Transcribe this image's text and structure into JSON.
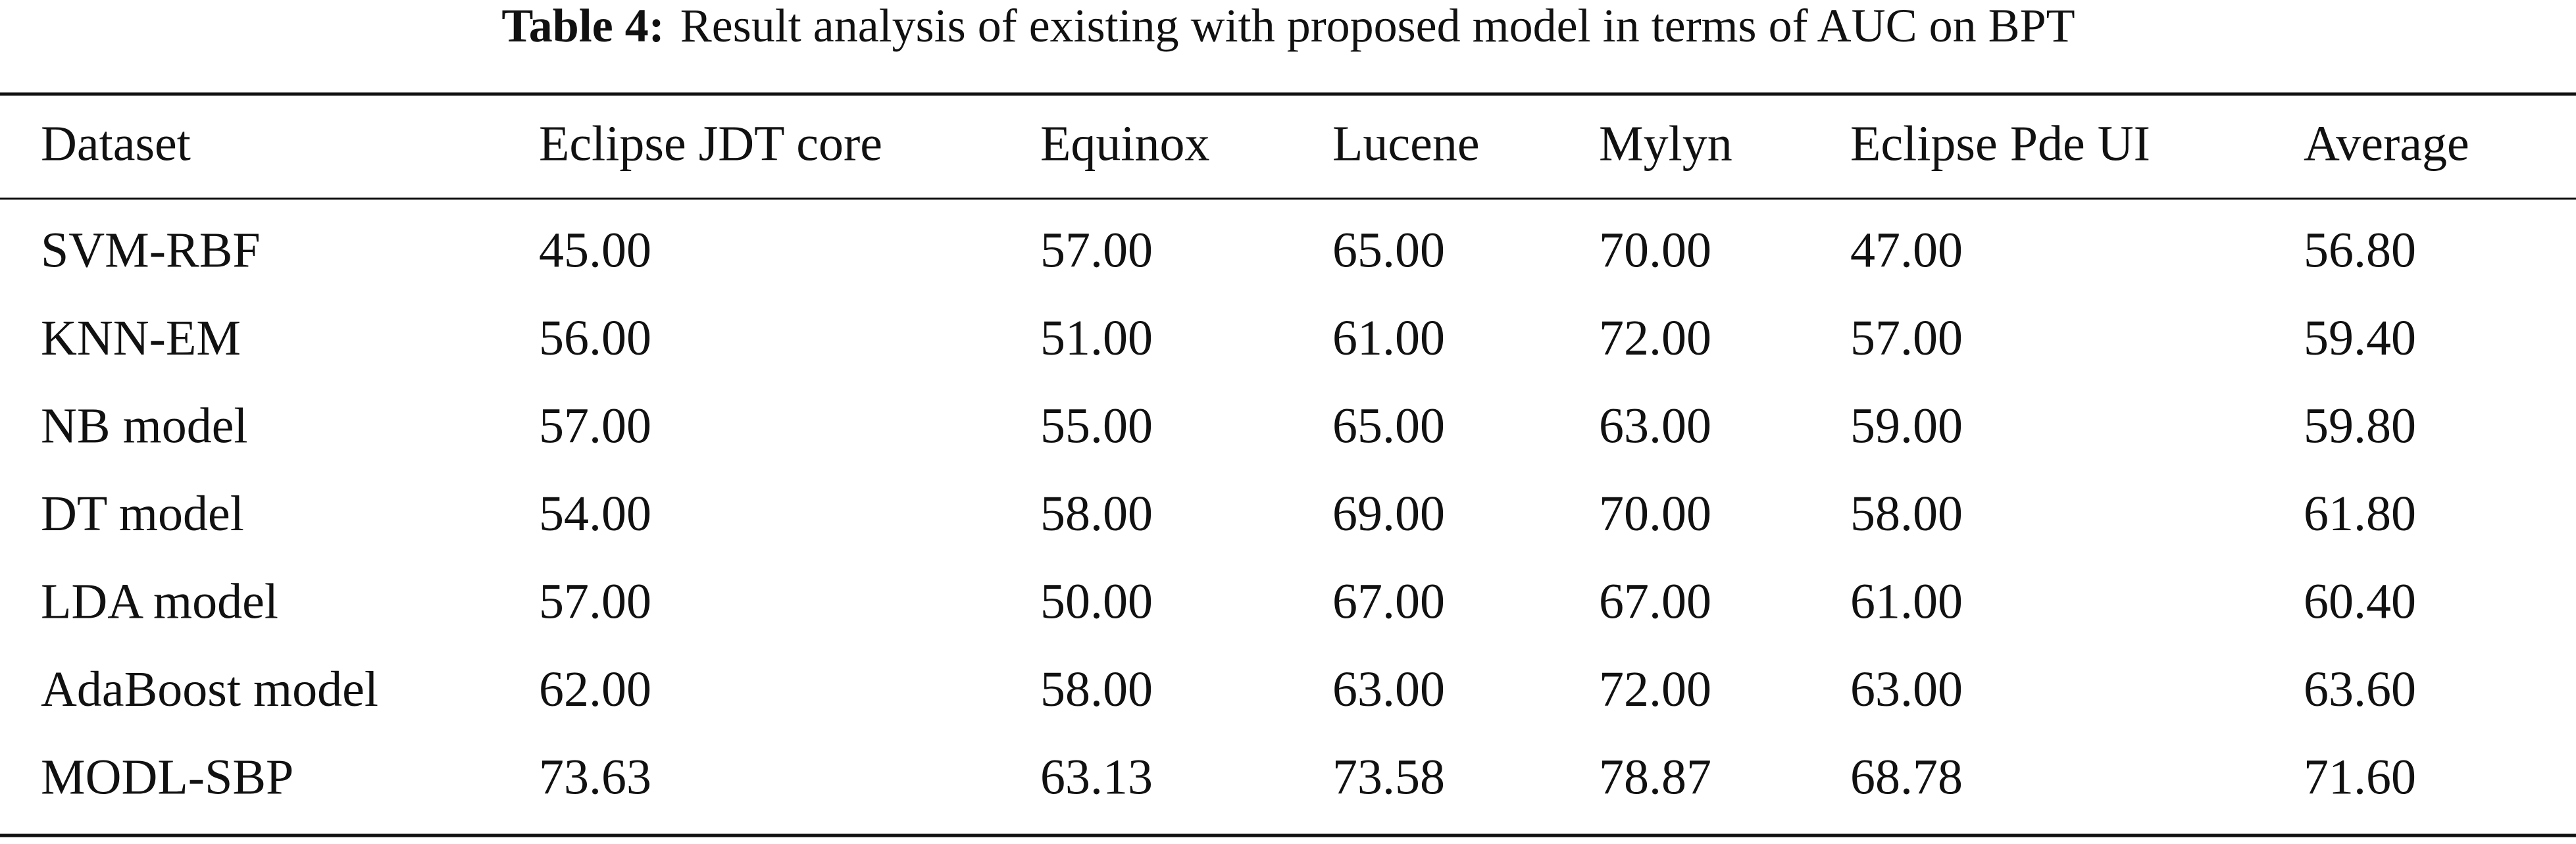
{
  "caption": {
    "label": "Table 4:",
    "text": "Result analysis of existing with proposed model in terms of AUC on BPT"
  },
  "table": {
    "header": [
      "Dataset",
      "Eclipse JDT core",
      "Equinox",
      "Lucene",
      "Mylyn",
      "Eclipse Pde UI",
      "Average"
    ],
    "rows": [
      [
        "SVM-RBF",
        "45.00",
        "57.00",
        "65.00",
        "70.00",
        "47.00",
        "56.80"
      ],
      [
        "KNN-EM",
        "56.00",
        "51.00",
        "61.00",
        "72.00",
        "57.00",
        "59.40"
      ],
      [
        "NB model",
        "57.00",
        "55.00",
        "65.00",
        "63.00",
        "59.00",
        "59.80"
      ],
      [
        "DT model",
        "54.00",
        "58.00",
        "69.00",
        "70.00",
        "58.00",
        "61.80"
      ],
      [
        "LDA model",
        "57.00",
        "50.00",
        "67.00",
        "67.00",
        "61.00",
        "60.40"
      ],
      [
        "AdaBoost model",
        "62.00",
        "58.00",
        "63.00",
        "72.00",
        "63.00",
        "63.60"
      ],
      [
        "MODL-SBP",
        "73.63",
        "63.13",
        "73.58",
        "78.87",
        "68.78",
        "71.60"
      ]
    ]
  }
}
